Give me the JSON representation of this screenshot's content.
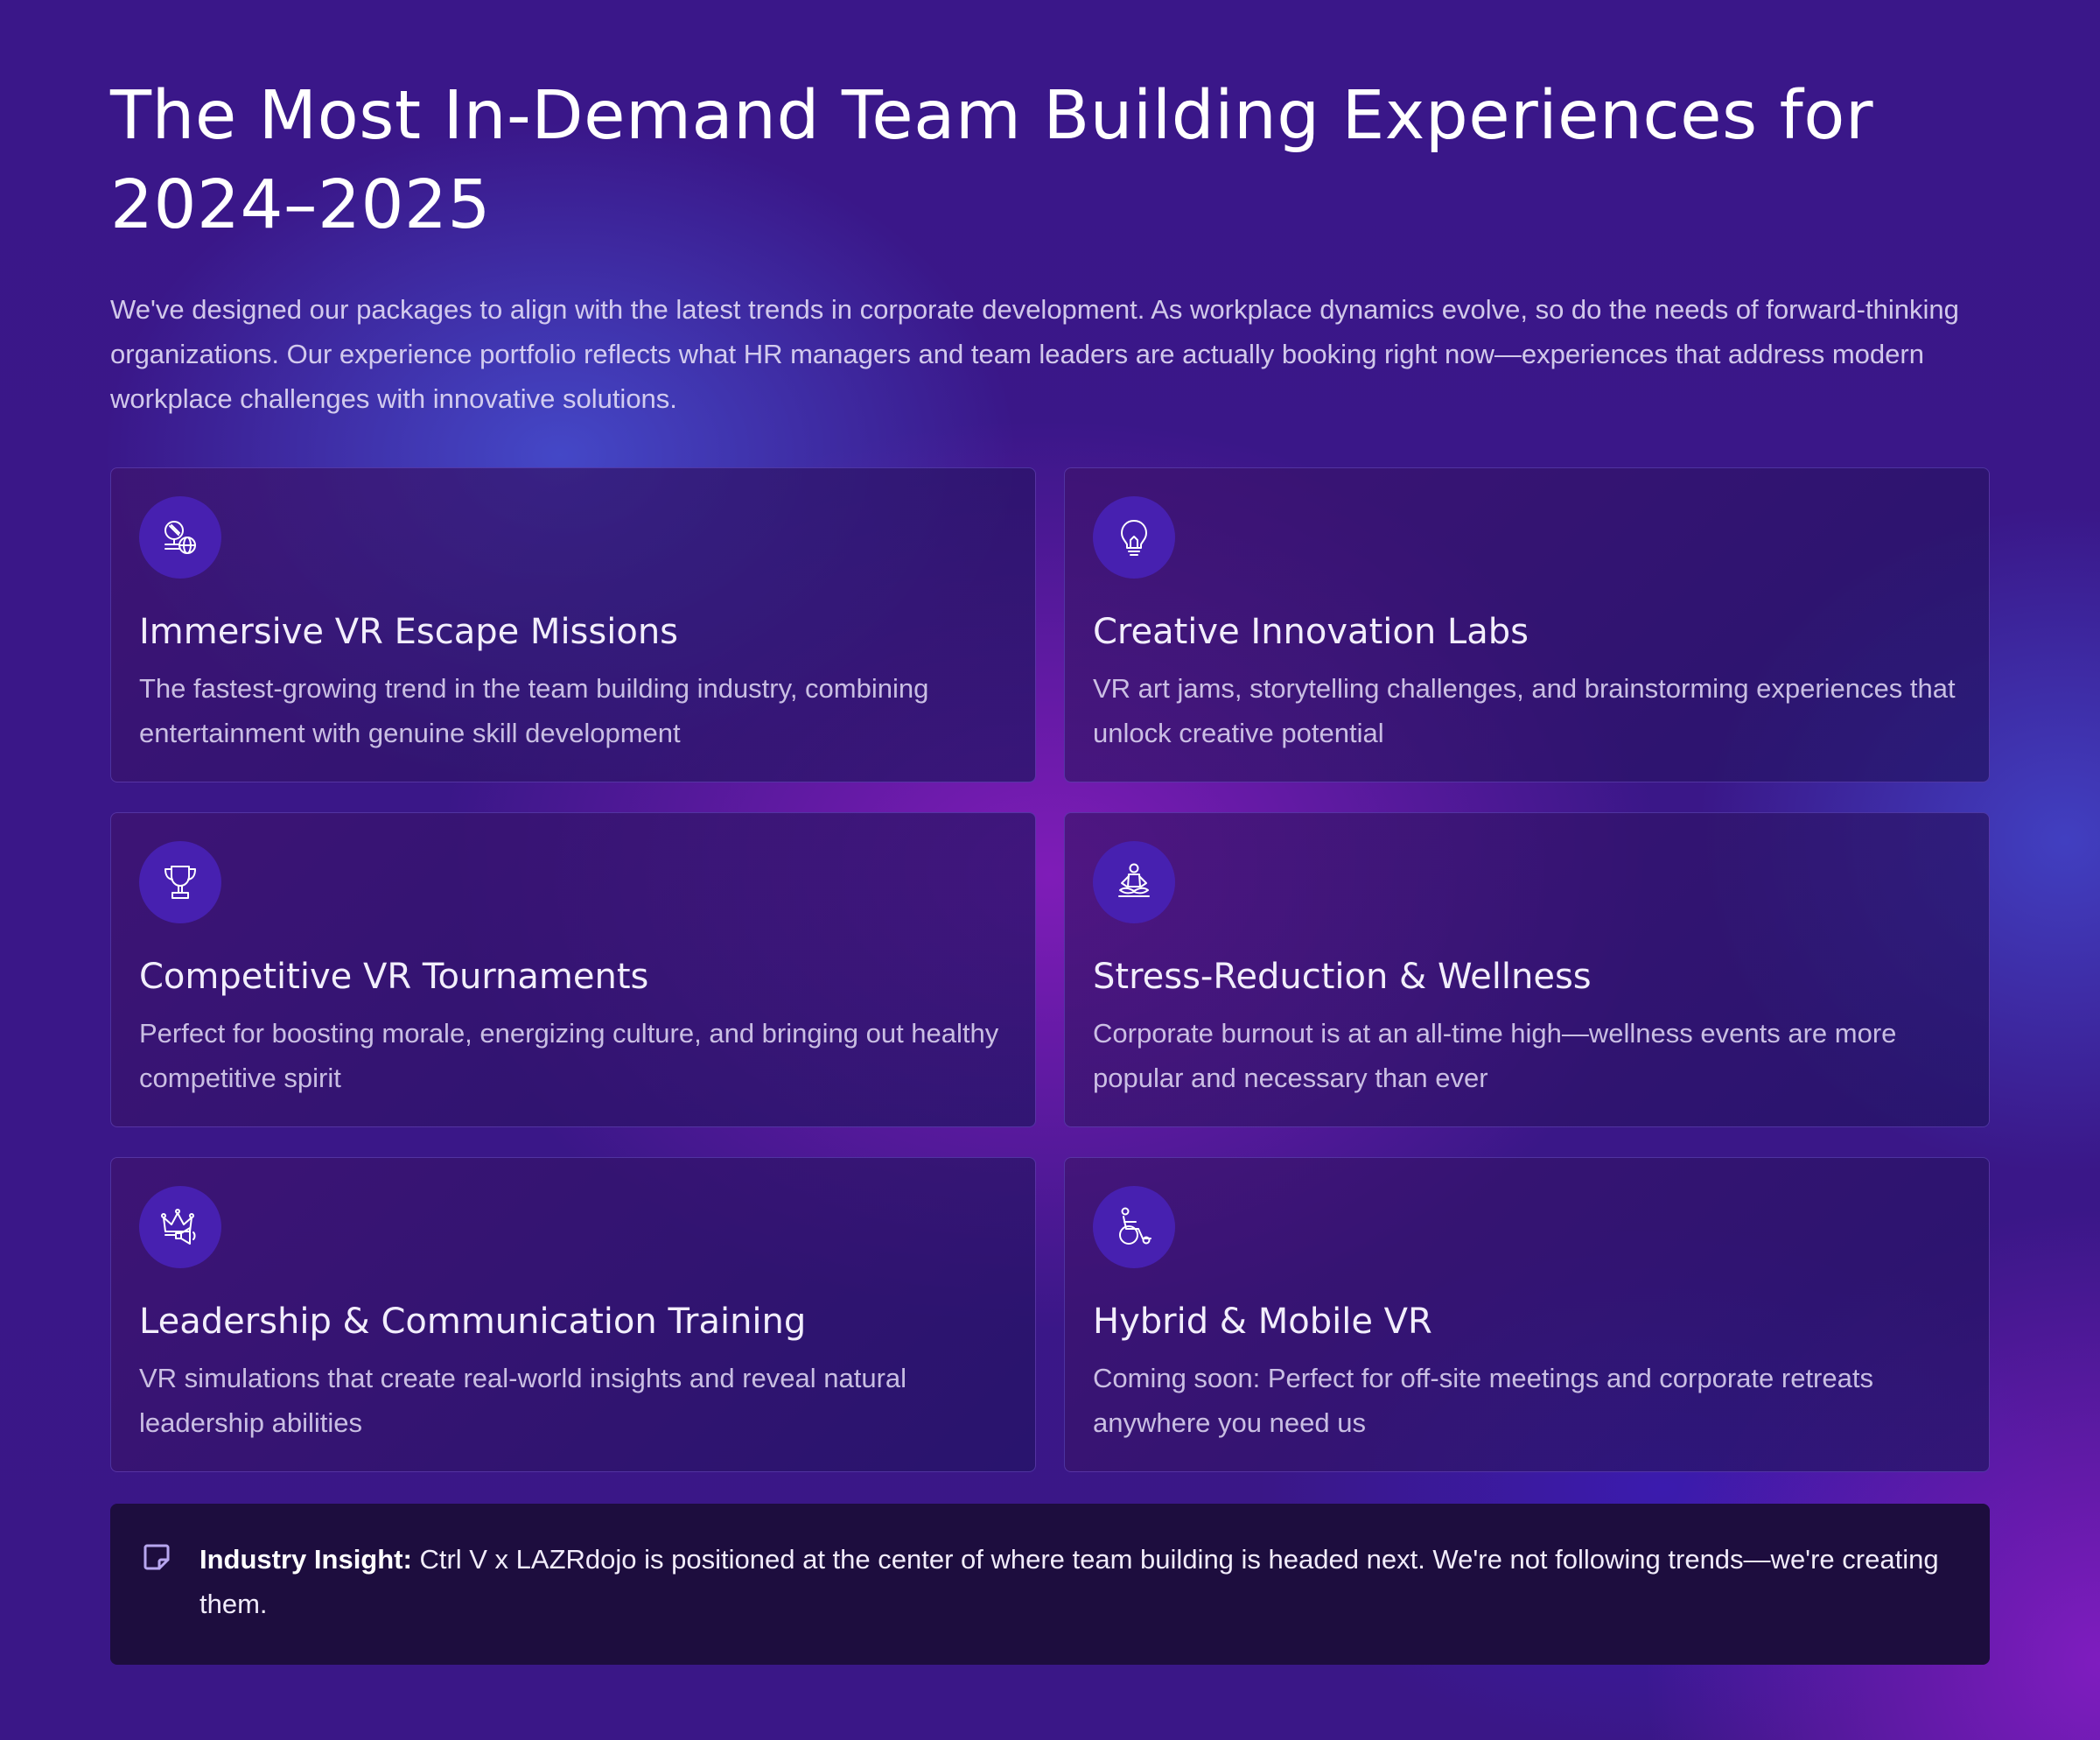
{
  "header": {
    "title": "The Most In-Demand Team Building Experiences for 2024–2025",
    "intro": "We've designed our packages to align with the latest trends in corporate development. As workplace dynamics evolve, so do the needs of forward-thinking organizations. Our experience portfolio reflects what HR managers and team leaders are actually booking right now—experiences that address modern workplace challenges with innovative solutions."
  },
  "cards": [
    {
      "icon": "vr-globe-icon",
      "title": "Immersive VR Escape Missions",
      "text": "The fastest-growing trend in the team building industry, combining entertainment with genuine skill development"
    },
    {
      "icon": "lightbulb-icon",
      "title": "Creative Innovation Labs",
      "text": "VR art jams, storytelling challenges, and brainstorming experiences that unlock creative potential"
    },
    {
      "icon": "trophy-icon",
      "title": "Competitive VR Tournaments",
      "text": "Perfect for boosting morale, energizing culture, and bringing out healthy competitive spirit"
    },
    {
      "icon": "meditation-icon",
      "title": "Stress-Reduction & Wellness",
      "text": "Corporate burnout is at an all-time high—wellness events are more popular and necessary than ever"
    },
    {
      "icon": "crown-megaphone-icon",
      "title": "Leadership & Communication Training",
      "text": "VR simulations that create real-world insights and reveal natural leadership abilities"
    },
    {
      "icon": "wheelchair-icon",
      "title": "Hybrid & Mobile VR",
      "text": "Coming soon: Perfect for off-site meetings and corporate retreats anywhere you need us"
    }
  ],
  "insight": {
    "icon": "note-icon",
    "label": "Industry Insight:",
    "text": " Ctrl V x LAZRdojo is positioned at the center of where team building is headed next. We're not following trends—we're creating them."
  },
  "colors": {
    "background": "#3a1789",
    "icon_circle": "#4720b0",
    "insight_bg": "#1d0d3e",
    "insight_icon": "#b8a6f0"
  }
}
